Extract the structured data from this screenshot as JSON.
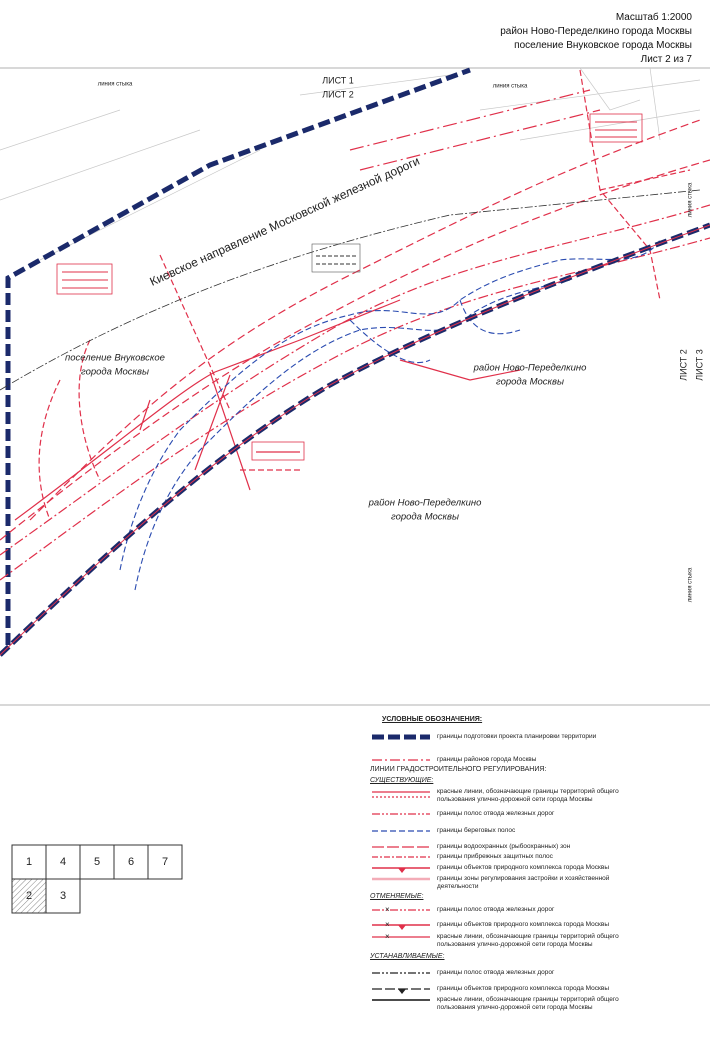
{
  "header": {
    "scale": "Масштаб 1:2000",
    "lines": [
      "район Ново-Переделкино города Москвы",
      "поселение Внуковское города Москвы"
    ],
    "sheet": "Лист 2 из 7"
  },
  "map": {
    "labels": [
      "линия стыка",
      "линия стыка",
      "ЛИСТ 1",
      "ЛИСТ 2",
      "линия стыка",
      "ЛИСТ 2",
      "ЛИСТ 3",
      "Киевское направление Московской железной дороги",
      "поселение Внуковское",
      "города Москвы",
      "район Ново-Переделкино",
      "города Москвы",
      "район Ново-Переделкино",
      "города Москвы",
      "линия стыка"
    ]
  },
  "legend": {
    "title": "УСЛОВНЫЕ ОБОЗНАЧЕНИЯ:",
    "items": [
      "границы подготовки проекта планировки территории",
      "границы районов города Москвы",
      "ЛИНИИ ГРАДОСТРОИТЕЛЬНОГО РЕГУЛИРОВАНИЯ:",
      "СУЩЕСТВУЮЩИЕ:",
      "красные линии, обозначающие границы территорий общего пользования улично-дорожной сети города Москвы",
      "границы полос отвода железных дорог",
      "границы береговых полос",
      "границы водоохранных (рыбоохранных) зон",
      "границы прибрежных защитных полос",
      "границы объектов природного комплекса города Москвы",
      "границы зоны регулирования застройки и хозяйственной деятельности",
      "ОТМЕНЯЕМЫЕ:",
      "границы полос отвода железных дорог",
      "границы объектов природного комплекса города Москвы",
      "красные линии, обозначающие границы территорий общего пользования улично-дорожной сети города Москвы",
      "УСТАНАВЛИВАЕМЫЕ:",
      "границы полос отвода железных дорог",
      "границы объектов природного комплекса города Москвы",
      "красные линии, обозначающие границы территорий общего пользования улично-дорожной сети города Москвы"
    ]
  },
  "sheet_index": {
    "rows": [
      [
        "1",
        "4",
        "5",
        "6",
        "7"
      ],
      [
        "2",
        "3"
      ]
    ]
  }
}
